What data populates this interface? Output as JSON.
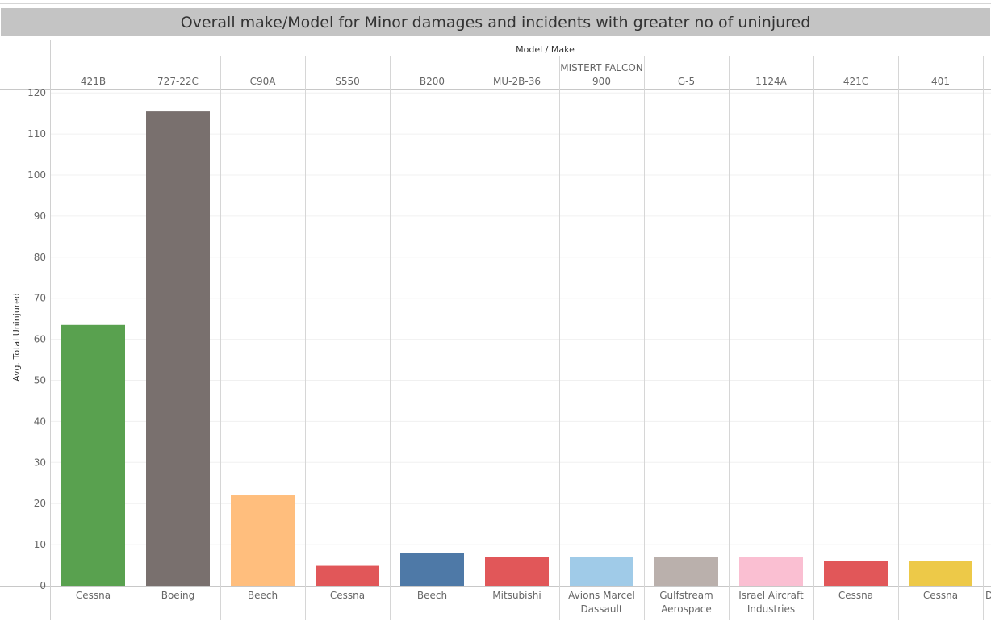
{
  "title": "Overall make/Model for Minor damages and incidents with greater no of uninjured",
  "chart_data": {
    "type": "bar",
    "title": "Overall make/Model for Minor damages and incidents with greater no of uninjured",
    "column_header": "Model  /  Make",
    "ylabel": "Avg. Total Uninjured",
    "ylim": [
      0,
      120
    ],
    "yticks": [
      0,
      10,
      20,
      30,
      40,
      50,
      60,
      70,
      80,
      90,
      100,
      110,
      120
    ],
    "grid": true,
    "categories": [
      {
        "model": [
          "421B"
        ],
        "make": [
          "Cessna"
        ],
        "value": 63.5,
        "color": "#59a14f"
      },
      {
        "model": [
          "727-22C"
        ],
        "make": [
          "Boeing"
        ],
        "value": 115.5,
        "color": "#79706e"
      },
      {
        "model": [
          "C90A"
        ],
        "make": [
          "Beech"
        ],
        "value": 22,
        "color": "#ffbe7d"
      },
      {
        "model": [
          "S550"
        ],
        "make": [
          "Cessna"
        ],
        "value": 5,
        "color": "#e15759"
      },
      {
        "model": [
          "B200"
        ],
        "make": [
          "Beech"
        ],
        "value": 8,
        "color": "#4e79a7"
      },
      {
        "model": [
          "MU-2B-36"
        ],
        "make": [
          "Mitsubishi"
        ],
        "value": 7,
        "color": "#e15759"
      },
      {
        "model": [
          "MISTERT FALCON",
          "900"
        ],
        "make": [
          "Avions Marcel",
          "Dassault"
        ],
        "value": 7,
        "color": "#a0cbe8"
      },
      {
        "model": [
          "G-5"
        ],
        "make": [
          "Gulfstream",
          "Aerospace"
        ],
        "value": 7,
        "color": "#bab0ac"
      },
      {
        "model": [
          "1124A"
        ],
        "make": [
          "Israel Aircraft",
          "Industries"
        ],
        "value": 7,
        "color": "#fabfd2"
      },
      {
        "model": [
          "421C"
        ],
        "make": [
          "Cessna"
        ],
        "value": 6,
        "color": "#e15759"
      },
      {
        "model": [
          "401"
        ],
        "make": [
          "Cessna"
        ],
        "value": 6,
        "color": "#edc948"
      }
    ],
    "overflow_label": "D"
  }
}
